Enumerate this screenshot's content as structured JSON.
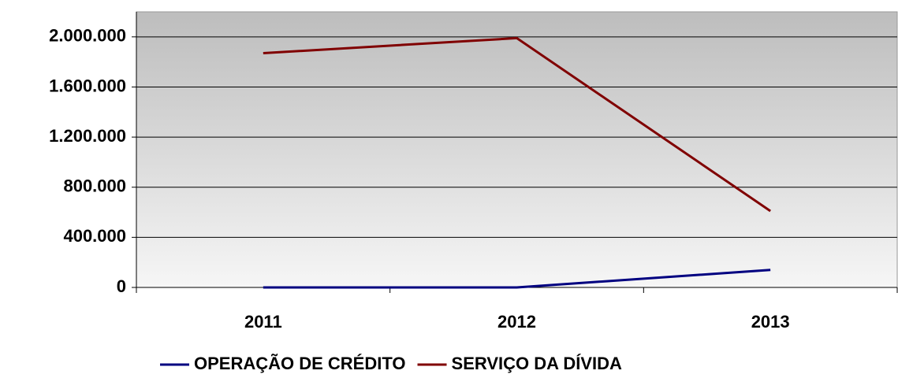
{
  "chart_data": {
    "type": "line",
    "categories": [
      "2011",
      "2012",
      "2013"
    ],
    "series": [
      {
        "name": "OPERAÇÃO DE CRÉDITO",
        "color": "#000080",
        "values": [
          0,
          0,
          140000
        ]
      },
      {
        "name": "SERVIÇO DA DÍVIDA",
        "color": "#800000",
        "values": [
          1870000,
          1990000,
          610000
        ]
      }
    ],
    "ylim": [
      0,
      2200000
    ],
    "yticks": [
      0,
      {
        "value": 400000,
        "label": "400.000"
      },
      {
        "value": 800000,
        "label": "800.000"
      },
      {
        "value": 1200000,
        "label": "1.200.000"
      },
      {
        "value": 1600000,
        "label": "1.600.000"
      },
      {
        "value": 2000000,
        "label": "2.000.000"
      }
    ],
    "grid": true,
    "legend": "bottom"
  }
}
